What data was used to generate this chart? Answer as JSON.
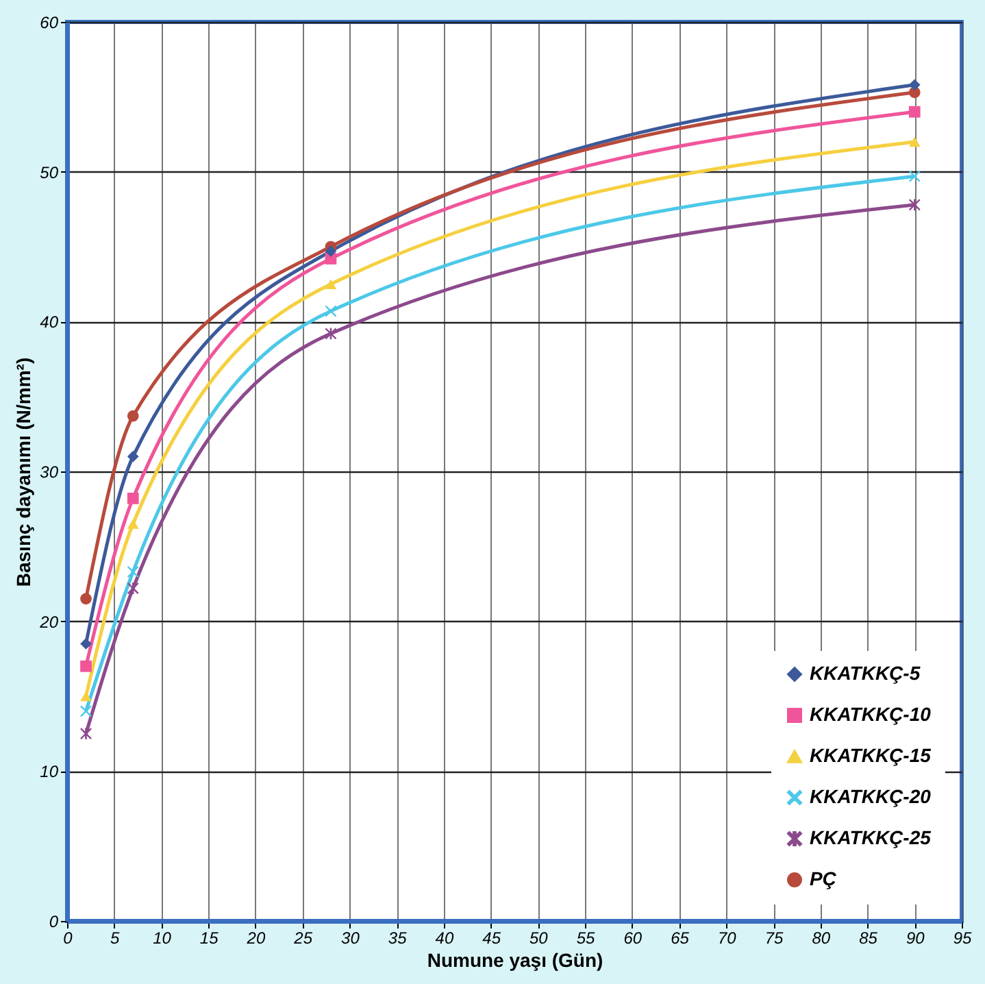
{
  "chart_data": {
    "type": "line",
    "xlabel": "Numune yaşı (Gün)",
    "ylabel": "Basınç dayanımı (N/mm²)",
    "xlim": [
      0,
      95
    ],
    "xticks": [
      0,
      5,
      10,
      15,
      20,
      25,
      30,
      35,
      40,
      45,
      50,
      55,
      60,
      65,
      70,
      75,
      80,
      85,
      90,
      95
    ],
    "ylim": [
      0,
      60
    ],
    "yticks": [
      0,
      10,
      20,
      30,
      40,
      50,
      60
    ],
    "grid": true,
    "legend": "bottom right",
    "x": [
      2,
      7,
      28,
      90
    ],
    "series": [
      {
        "name": "KKATKKÇ-5",
        "color": "#3c5a9a",
        "marker": "diamond",
        "values": [
          18.5,
          31,
          44.7,
          55.8
        ]
      },
      {
        "name": "KKATKKÇ-10",
        "color": "#f0559a",
        "marker": "square",
        "values": [
          17,
          28.2,
          44.2,
          54
        ]
      },
      {
        "name": "KKATKKÇ-15",
        "color": "#f5d040",
        "marker": "triangle",
        "values": [
          15,
          26.5,
          42.5,
          52
        ]
      },
      {
        "name": "KKATKKÇ-20",
        "color": "#4cc8e8",
        "marker": "cross",
        "values": [
          14,
          23.3,
          40.7,
          49.7
        ]
      },
      {
        "name": "KKATKKÇ-25",
        "color": "#8c4a8c",
        "marker": "star",
        "values": [
          12.5,
          22.2,
          39.2,
          47.8
        ]
      },
      {
        "name": "PÇ",
        "color": "#b84a3c",
        "marker": "circle",
        "values": [
          21.5,
          33.7,
          45,
          55.3
        ]
      }
    ]
  }
}
